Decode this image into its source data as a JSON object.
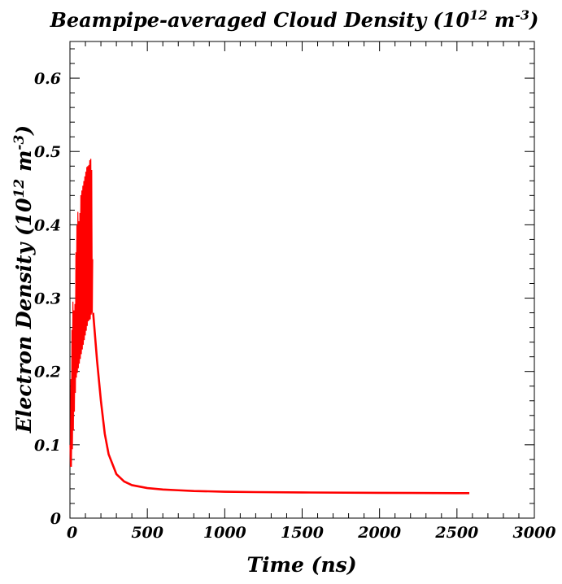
{
  "chart_data": {
    "type": "line",
    "title": "Beampipe-averaged Cloud Density (10",
    "title_sup1": "12",
    "title_mid": " m",
    "title_sup2": "-3",
    "title_end": ")",
    "xlabel": "Time (ns)",
    "ylabel": "Electron Density (10",
    "ylabel_sup1": "12",
    "ylabel_mid": " m",
    "ylabel_sup2": "-3",
    "ylabel_end": ")",
    "xlim": [
      0,
      3000
    ],
    "ylim": [
      0,
      0.65
    ],
    "x_ticks": [
      "0",
      "500",
      "1000",
      "1500",
      "2000",
      "2500",
      "3000"
    ],
    "y_ticks": [
      "0",
      "0.1",
      "0.2",
      "0.3",
      "0.4",
      "0.5",
      "0.6"
    ],
    "grid": false,
    "line_color": "#ff0000",
    "series": [
      {
        "envelope_upper": {
          "x": [
            0,
            10,
            20,
            30,
            40,
            50,
            60,
            70,
            80,
            90,
            100,
            110,
            120,
            130,
            140,
            150
          ],
          "y": [
            0.1,
            0.24,
            0.3,
            0.27,
            0.38,
            0.42,
            0.4,
            0.44,
            0.45,
            0.46,
            0.47,
            0.48,
            0.48,
            0.49,
            0.49,
            0.3
          ]
        },
        "envelope_lower": {
          "x": [
            0,
            10,
            20,
            30,
            40,
            50,
            60,
            70,
            80,
            90,
            100,
            110,
            120,
            130,
            140,
            150
          ],
          "y": [
            0.07,
            0.07,
            0.11,
            0.15,
            0.19,
            0.2,
            0.21,
            0.22,
            0.23,
            0.24,
            0.25,
            0.26,
            0.27,
            0.27,
            0.28,
            0.28
          ]
        },
        "decay": {
          "x": [
            150,
            175,
            200,
            225,
            250,
            300,
            350,
            400,
            500,
            600,
            700,
            800,
            1000,
            1200,
            1500,
            2000,
            2500,
            2580
          ],
          "y": [
            0.28,
            0.215,
            0.16,
            0.115,
            0.087,
            0.06,
            0.05,
            0.045,
            0.041,
            0.039,
            0.038,
            0.037,
            0.036,
            0.0355,
            0.035,
            0.0345,
            0.034,
            0.034
          ]
        }
      }
    ]
  }
}
